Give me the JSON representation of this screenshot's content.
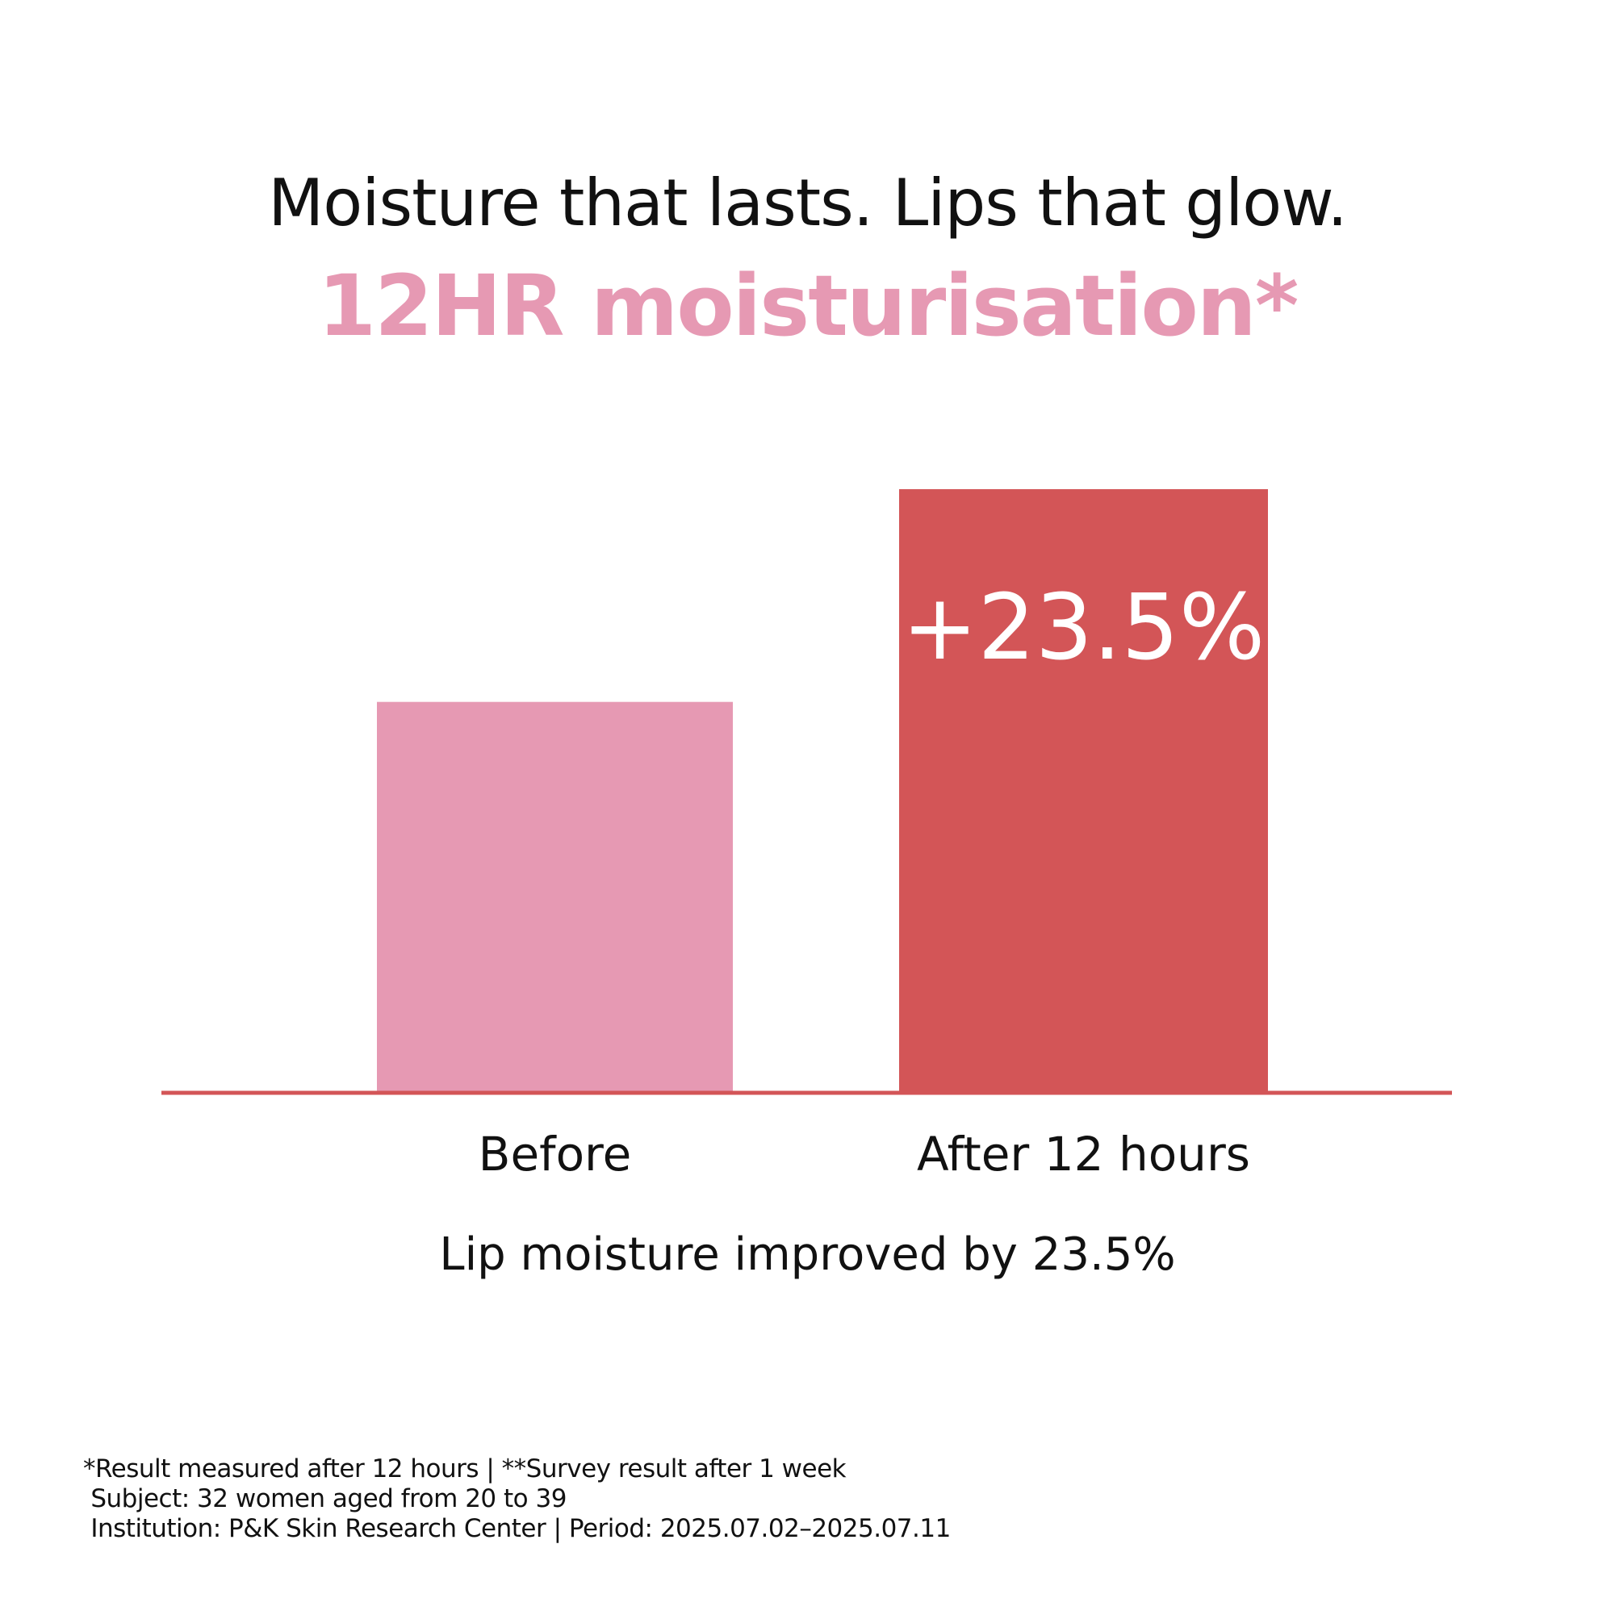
{
  "header": {
    "title": "Moisture that lasts. Lips that glow.",
    "subtitle": "12HR moisturisation*"
  },
  "chart_data": {
    "type": "bar",
    "categories": [
      "Before",
      "After 12 hours"
    ],
    "values": [
      100,
      123.5
    ],
    "data_labels": [
      "",
      "+23.5%"
    ],
    "title": "",
    "xlabel": "",
    "ylabel": "",
    "ylim": [
      57,
      140
    ],
    "grid": false,
    "axis_visible": false,
    "colors": [
      "#e699b3",
      "#d35557"
    ],
    "baseline_color": "#d35557"
  },
  "summary": "Lip moisture improved by 23.5%",
  "footnotes": [
    "*Result measured after 12 hours | **Survey result after 1 week",
    " Subject: 32 women aged from 20 to 39",
    " Institution: P&K Skin Research Center | Period: 2025.07.02–2025.07.11"
  ],
  "colors": {
    "accent_pink": "#e699b3",
    "accent_red": "#d35557",
    "text": "#111111"
  }
}
